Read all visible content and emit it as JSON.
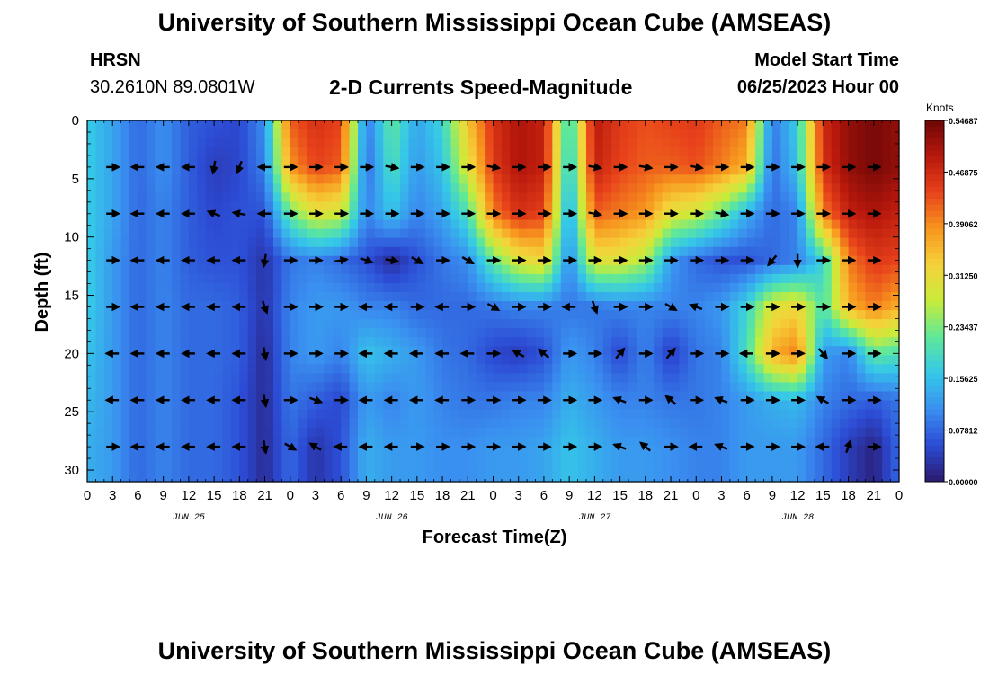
{
  "header": {
    "title": "University of Southern Mississippi Ocean Cube (AMSEAS)",
    "station": "HRSN",
    "coordinates": "30.2610N  89.0801W",
    "model_start_label": "Model Start Time",
    "model_start_value": "06/25/2023 Hour 00"
  },
  "footer": {
    "title": "University of Southern Mississippi Ocean Cube (AMSEAS)"
  },
  "chart_data": {
    "type": "heatmap",
    "title": "2-D Currents Speed-Magnitude",
    "xlabel": "Forecast Time(Z)",
    "ylabel": "Depth (ft)",
    "x_tick_labels": [
      "0",
      "3",
      "6",
      "9",
      "12",
      "15",
      "18",
      "21",
      "0",
      "3",
      "6",
      "9",
      "12",
      "15",
      "18",
      "21",
      "0",
      "3",
      "6",
      "9",
      "12",
      "15",
      "18",
      "21",
      "0",
      "3",
      "6",
      "9",
      "12",
      "15",
      "18",
      "21",
      "0"
    ],
    "x_range_hours": [
      0,
      96
    ],
    "day_labels": [
      {
        "text": "JUN 25",
        "hour": 12
      },
      {
        "text": "JUN 26",
        "hour": 36
      },
      {
        "text": "JUN 27",
        "hour": 60
      },
      {
        "text": "JUN 28",
        "hour": 84
      }
    ],
    "y_ticks": [
      0,
      5,
      10,
      15,
      20,
      25,
      30
    ],
    "y_tick_labels": [
      "0",
      "5",
      "10",
      "15",
      "20",
      "25",
      "30"
    ],
    "ylim": [
      0,
      31
    ],
    "colorbar": {
      "unit_label": "Knots",
      "tick_values": [
        0.0,
        0.078125,
        0.15625,
        0.234375,
        0.3125,
        0.390625,
        0.46875,
        0.546875
      ],
      "tick_labels": [
        "0.00000",
        "0.07812",
        "0.15625",
        "0.23437",
        "0.31250",
        "0.39062",
        "0.46875",
        "0.54687"
      ],
      "range": [
        0.0,
        0.546875
      ],
      "colors": [
        "#2a1a6e",
        "#2c4bd4",
        "#3a8ff0",
        "#35c8e8",
        "#5ee89a",
        "#c8ec3a",
        "#f5d23a",
        "#f7961e",
        "#e8431b",
        "#b8180c",
        "#6e0707"
      ]
    },
    "depths_ft": [
      0,
      4,
      8,
      12,
      16,
      20,
      24,
      28,
      31
    ],
    "hours": [
      0,
      3,
      6,
      9,
      12,
      15,
      18,
      21,
      24,
      27,
      30,
      33,
      36,
      39,
      42,
      45,
      48,
      51,
      54,
      57,
      60,
      63,
      66,
      69,
      72,
      75,
      78,
      81,
      84,
      87,
      90,
      93,
      96
    ],
    "speed_knots": [
      [
        0.17,
        0.13,
        0.08,
        0.11,
        0.07,
        0.06,
        0.05,
        0.11,
        0.42,
        0.46,
        0.44,
        0.09,
        0.22,
        0.13,
        0.18,
        0.34,
        0.46,
        0.5,
        0.48,
        0.17,
        0.49,
        0.45,
        0.43,
        0.44,
        0.45,
        0.42,
        0.4,
        0.09,
        0.17,
        0.47,
        0.52,
        0.54,
        0.52
      ],
      [
        0.17,
        0.13,
        0.08,
        0.11,
        0.07,
        0.04,
        0.05,
        0.1,
        0.38,
        0.44,
        0.42,
        0.08,
        0.2,
        0.12,
        0.16,
        0.3,
        0.45,
        0.5,
        0.48,
        0.15,
        0.48,
        0.44,
        0.42,
        0.42,
        0.43,
        0.4,
        0.36,
        0.08,
        0.16,
        0.46,
        0.52,
        0.54,
        0.52
      ],
      [
        0.17,
        0.13,
        0.08,
        0.1,
        0.07,
        0.05,
        0.06,
        0.06,
        0.22,
        0.3,
        0.28,
        0.1,
        0.16,
        0.1,
        0.13,
        0.2,
        0.4,
        0.46,
        0.44,
        0.12,
        0.42,
        0.4,
        0.38,
        0.3,
        0.28,
        0.22,
        0.14,
        0.08,
        0.1,
        0.4,
        0.48,
        0.5,
        0.48
      ],
      [
        0.17,
        0.12,
        0.08,
        0.1,
        0.07,
        0.06,
        0.06,
        0.03,
        0.09,
        0.1,
        0.08,
        0.06,
        0.02,
        0.06,
        0.09,
        0.11,
        0.22,
        0.3,
        0.32,
        0.1,
        0.3,
        0.3,
        0.26,
        0.12,
        0.08,
        0.06,
        0.06,
        0.08,
        0.1,
        0.18,
        0.4,
        0.45,
        0.44
      ],
      [
        0.17,
        0.12,
        0.08,
        0.1,
        0.08,
        0.08,
        0.07,
        0.03,
        0.1,
        0.12,
        0.12,
        0.1,
        0.1,
        0.08,
        0.08,
        0.08,
        0.09,
        0.1,
        0.1,
        0.09,
        0.09,
        0.1,
        0.1,
        0.1,
        0.1,
        0.12,
        0.18,
        0.3,
        0.32,
        0.2,
        0.36,
        0.4,
        0.36
      ],
      [
        0.16,
        0.12,
        0.08,
        0.1,
        0.08,
        0.08,
        0.07,
        0.02,
        0.1,
        0.12,
        0.1,
        0.16,
        0.14,
        0.12,
        0.09,
        0.08,
        0.05,
        0.04,
        0.06,
        0.12,
        0.1,
        0.05,
        0.1,
        0.04,
        0.09,
        0.1,
        0.2,
        0.36,
        0.4,
        0.12,
        0.1,
        0.22,
        0.2
      ],
      [
        0.15,
        0.12,
        0.08,
        0.1,
        0.08,
        0.08,
        0.06,
        0.02,
        0.09,
        0.07,
        0.05,
        0.12,
        0.1,
        0.12,
        0.1,
        0.09,
        0.09,
        0.1,
        0.1,
        0.14,
        0.12,
        0.1,
        0.1,
        0.09,
        0.09,
        0.1,
        0.12,
        0.14,
        0.15,
        0.1,
        0.08,
        0.07,
        0.09
      ],
      [
        0.14,
        0.12,
        0.08,
        0.1,
        0.08,
        0.08,
        0.06,
        0.02,
        0.08,
        0.03,
        0.06,
        0.14,
        0.12,
        0.12,
        0.11,
        0.11,
        0.12,
        0.12,
        0.13,
        0.16,
        0.14,
        0.12,
        0.12,
        0.11,
        0.1,
        0.1,
        0.12,
        0.12,
        0.12,
        0.08,
        0.04,
        0.01,
        0.08
      ],
      [
        0.14,
        0.12,
        0.08,
        0.1,
        0.08,
        0.08,
        0.06,
        0.02,
        0.08,
        0.03,
        0.06,
        0.14,
        0.12,
        0.12,
        0.11,
        0.11,
        0.12,
        0.12,
        0.13,
        0.16,
        0.14,
        0.12,
        0.12,
        0.11,
        0.1,
        0.1,
        0.12,
        0.12,
        0.12,
        0.08,
        0.04,
        0.01,
        0.08
      ]
    ],
    "vector_depths_ft": [
      4,
      8,
      12,
      16,
      20,
      24,
      28
    ],
    "vector_directions_deg": [
      [
        0,
        0,
        180,
        180,
        180,
        100,
        110,
        180,
        0,
        0,
        0,
        0,
        10,
        0,
        0,
        0,
        10,
        0,
        0,
        0,
        10,
        0,
        10,
        0,
        10,
        0,
        0,
        0,
        0,
        0,
        0,
        0,
        0
      ],
      [
        0,
        0,
        180,
        180,
        180,
        200,
        190,
        180,
        0,
        0,
        0,
        0,
        0,
        0,
        0,
        0,
        0,
        0,
        0,
        0,
        10,
        0,
        0,
        0,
        0,
        10,
        0,
        0,
        0,
        0,
        0,
        0,
        0
      ],
      [
        0,
        0,
        180,
        180,
        180,
        180,
        180,
        100,
        0,
        0,
        350,
        20,
        10,
        30,
        0,
        30,
        0,
        0,
        0,
        0,
        0,
        0,
        0,
        0,
        0,
        0,
        0,
        130,
        90,
        0,
        0,
        0,
        0
      ],
      [
        0,
        0,
        180,
        180,
        180,
        180,
        180,
        70,
        0,
        0,
        0,
        180,
        180,
        0,
        180,
        0,
        30,
        0,
        0,
        180,
        70,
        0,
        0,
        30,
        200,
        0,
        0,
        0,
        0,
        0,
        0,
        0,
        0
      ],
      [
        180,
        180,
        180,
        180,
        180,
        180,
        180,
        80,
        0,
        0,
        0,
        180,
        180,
        180,
        180,
        180,
        0,
        210,
        220,
        0,
        0,
        310,
        0,
        310,
        0,
        0,
        180,
        0,
        0,
        50,
        0,
        0,
        0
      ],
      [
        180,
        180,
        180,
        180,
        180,
        180,
        180,
        80,
        0,
        20,
        0,
        180,
        180,
        180,
        180,
        0,
        0,
        0,
        0,
        0,
        0,
        200,
        0,
        220,
        0,
        200,
        0,
        0,
        0,
        210,
        0,
        0,
        0
      ],
      [
        0,
        0,
        180,
        180,
        180,
        180,
        180,
        80,
        30,
        210,
        180,
        180,
        180,
        0,
        0,
        0,
        0,
        0,
        0,
        0,
        0,
        200,
        220,
        0,
        180,
        200,
        0,
        0,
        0,
        180,
        290,
        0,
        0
      ]
    ]
  }
}
